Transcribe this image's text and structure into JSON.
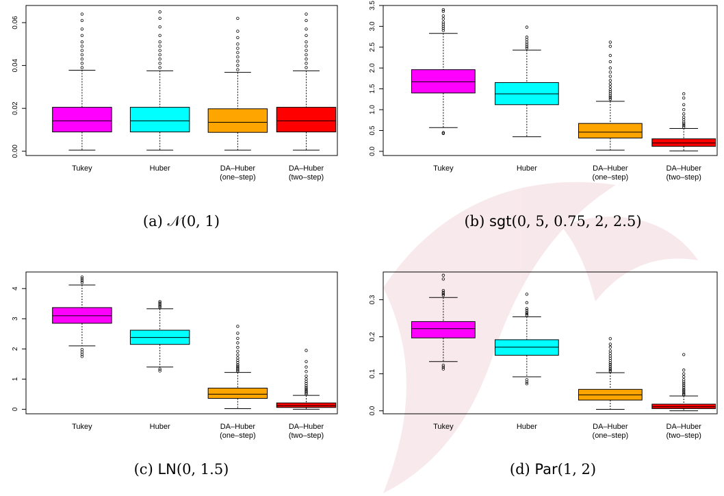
{
  "chart_data": [
    {
      "type": "boxplot",
      "caption": {
        "label": "(a)",
        "parts": [
          {
            "text": " ",
            "style": "serif"
          },
          {
            "text": "𝒩",
            "style": "serif"
          },
          {
            "text": "(0, 1)",
            "style": "serif"
          }
        ]
      },
      "categories": [
        "Tukey",
        "Huber",
        "DA–Huber\n(one–step)",
        "DA–Huber\n(two–step)"
      ],
      "ylim": [
        -0.002,
        0.068
      ],
      "yticks": [
        0.0,
        0.02,
        0.04,
        0.06
      ],
      "ytick_labels": [
        "0.00",
        "0.02",
        "0.04",
        "0.06"
      ],
      "boxes": [
        {
          "whisker_low": 0.0005,
          "q1": 0.009,
          "median": 0.0142,
          "q3": 0.0205,
          "whisker_high": 0.0378,
          "outliers": [
            0.039,
            0.041,
            0.043,
            0.045,
            0.047,
            0.049,
            0.051,
            0.054,
            0.057,
            0.061,
            0.064
          ]
        },
        {
          "whisker_low": 0.0005,
          "q1": 0.009,
          "median": 0.0142,
          "q3": 0.0205,
          "whisker_high": 0.0375,
          "outliers": [
            0.039,
            0.041,
            0.043,
            0.045,
            0.047,
            0.049,
            0.051,
            0.054,
            0.058,
            0.062,
            0.065
          ]
        },
        {
          "whisker_low": 0.0005,
          "q1": 0.0088,
          "median": 0.0135,
          "q3": 0.0198,
          "whisker_high": 0.0368,
          "outliers": [
            0.038,
            0.04,
            0.042,
            0.044,
            0.046,
            0.048,
            0.05,
            0.053,
            0.056,
            0.062
          ]
        },
        {
          "whisker_low": 0.0005,
          "q1": 0.009,
          "median": 0.0142,
          "q3": 0.0205,
          "whisker_high": 0.0375,
          "outliers": [
            0.039,
            0.041,
            0.043,
            0.045,
            0.047,
            0.049,
            0.051,
            0.054,
            0.057,
            0.061,
            0.064
          ]
        }
      ]
    },
    {
      "type": "boxplot",
      "caption": {
        "label": "(b)",
        "parts": [
          {
            "text": " ",
            "style": "serif"
          },
          {
            "text": "sgt",
            "style": "sans"
          },
          {
            "text": "(0, 5, 0.75, 2, 2.5)",
            "style": "serif"
          }
        ]
      },
      "categories": [
        "Tukey",
        "Huber",
        "DA–Huber\n(one–step)",
        "DA–Huber\n(two–step)"
      ],
      "ylim": [
        -0.1,
        3.5
      ],
      "yticks": [
        0.0,
        0.5,
        1.0,
        1.5,
        2.0,
        2.5,
        3.0,
        3.5
      ],
      "ytick_labels": [
        "0.0",
        "0.5",
        "1.0",
        "1.5",
        "2.0",
        "2.5",
        "3.0",
        "3.5"
      ],
      "boxes": [
        {
          "whisker_low": 0.57,
          "q1": 1.4,
          "median": 1.67,
          "q3": 1.96,
          "whisker_high": 2.83,
          "outliers": [
            0.43,
            0.45,
            2.9,
            2.95,
            3.0,
            3.05,
            3.1,
            3.18,
            3.25,
            3.36,
            3.4
          ]
        },
        {
          "whisker_low": 0.35,
          "q1": 1.12,
          "median": 1.38,
          "q3": 1.65,
          "whisker_high": 2.43,
          "outliers": [
            2.48,
            2.52,
            2.57,
            2.62,
            2.68,
            2.74,
            2.98
          ]
        },
        {
          "whisker_low": 0.03,
          "q1": 0.32,
          "median": 0.46,
          "q3": 0.67,
          "whisker_high": 1.2,
          "outliers": [
            1.25,
            1.29,
            1.33,
            1.38,
            1.43,
            1.48,
            1.55,
            1.62,
            1.7,
            1.8,
            1.9,
            2.0,
            2.15,
            2.3,
            2.52,
            2.62
          ]
        },
        {
          "whisker_low": 0.01,
          "q1": 0.12,
          "median": 0.2,
          "q3": 0.3,
          "whisker_high": 0.55,
          "outliers": [
            0.58,
            0.62,
            0.66,
            0.7,
            0.76,
            0.82,
            0.9,
            1.0,
            1.12,
            1.28,
            1.38
          ]
        }
      ]
    },
    {
      "type": "boxplot",
      "caption": {
        "label": "(c)",
        "parts": [
          {
            "text": " ",
            "style": "serif"
          },
          {
            "text": "LN",
            "style": "sans"
          },
          {
            "text": "(0, 1.5)",
            "style": "serif"
          }
        ]
      },
      "categories": [
        "Tukey",
        "Huber",
        "DA–Huber\n(one–step)",
        "DA–Huber\n(two–step)"
      ],
      "ylim": [
        -0.15,
        4.55
      ],
      "yticks": [
        0,
        1,
        2,
        3,
        4
      ],
      "ytick_labels": [
        "0",
        "1",
        "2",
        "3",
        "4"
      ],
      "boxes": [
        {
          "whisker_low": 2.1,
          "q1": 2.85,
          "median": 3.1,
          "q3": 3.37,
          "whisker_high": 4.12,
          "outliers": [
            1.75,
            1.82,
            1.9,
            1.98,
            4.2,
            4.26,
            4.32,
            4.38
          ]
        },
        {
          "whisker_low": 1.4,
          "q1": 2.15,
          "median": 2.38,
          "q3": 2.62,
          "whisker_high": 3.33,
          "outliers": [
            1.27,
            1.33,
            3.38,
            3.42,
            3.47,
            3.52,
            3.57
          ]
        },
        {
          "whisker_low": 0.02,
          "q1": 0.36,
          "median": 0.5,
          "q3": 0.7,
          "whisker_high": 1.22,
          "outliers": [
            1.26,
            1.3,
            1.34,
            1.38,
            1.43,
            1.48,
            1.55,
            1.62,
            1.7,
            1.8,
            1.92,
            2.05,
            2.2,
            2.35,
            2.52,
            2.75
          ]
        },
        {
          "whisker_low": 0.0,
          "q1": 0.06,
          "median": 0.12,
          "q3": 0.21,
          "whisker_high": 0.46,
          "outliers": [
            0.5,
            0.54,
            0.58,
            0.62,
            0.67,
            0.72,
            0.78,
            0.85,
            0.92,
            1.0,
            1.1,
            1.25,
            1.4,
            1.58,
            1.95
          ]
        }
      ]
    },
    {
      "type": "boxplot",
      "caption": {
        "label": "(d)",
        "parts": [
          {
            "text": " ",
            "style": "serif"
          },
          {
            "text": "Par",
            "style": "sans"
          },
          {
            "text": "(1, 2)",
            "style": "serif"
          }
        ]
      },
      "categories": [
        "Tukey",
        "Huber",
        "DA–Huber\n(one–step)",
        "DA–Huber\n(two–step)"
      ],
      "ylim": [
        -0.008,
        0.375
      ],
      "yticks": [
        0.0,
        0.1,
        0.2,
        0.3
      ],
      "ytick_labels": [
        "0.0",
        "0.1",
        "0.2",
        "0.3"
      ],
      "boxes": [
        {
          "whisker_low": 0.133,
          "q1": 0.197,
          "median": 0.222,
          "q3": 0.241,
          "whisker_high": 0.306,
          "outliers": [
            0.113,
            0.118,
            0.123,
            0.312,
            0.316,
            0.32,
            0.325,
            0.356,
            0.366
          ]
        },
        {
          "whisker_low": 0.092,
          "q1": 0.15,
          "median": 0.172,
          "q3": 0.192,
          "whisker_high": 0.254,
          "outliers": [
            0.073,
            0.078,
            0.084,
            0.258,
            0.262,
            0.266,
            0.271,
            0.276,
            0.292,
            0.315
          ]
        },
        {
          "whisker_low": 0.004,
          "q1": 0.029,
          "median": 0.043,
          "q3": 0.058,
          "whisker_high": 0.103,
          "outliers": [
            0.107,
            0.111,
            0.115,
            0.12,
            0.125,
            0.13,
            0.136,
            0.142,
            0.148,
            0.155,
            0.162,
            0.172,
            0.18,
            0.195
          ]
        },
        {
          "whisker_low": 0.0,
          "q1": 0.006,
          "median": 0.011,
          "q3": 0.018,
          "whisker_high": 0.04,
          "outliers": [
            0.043,
            0.046,
            0.05,
            0.054,
            0.058,
            0.063,
            0.068,
            0.073,
            0.078,
            0.084,
            0.092,
            0.1,
            0.11,
            0.152
          ]
        }
      ]
    }
  ],
  "colors": {
    "box_fills": [
      "#ff00ff",
      "#00ffff",
      "#ffa500",
      "#ff0000"
    ],
    "stroke": "#000000",
    "watermark": "#b0102a"
  }
}
